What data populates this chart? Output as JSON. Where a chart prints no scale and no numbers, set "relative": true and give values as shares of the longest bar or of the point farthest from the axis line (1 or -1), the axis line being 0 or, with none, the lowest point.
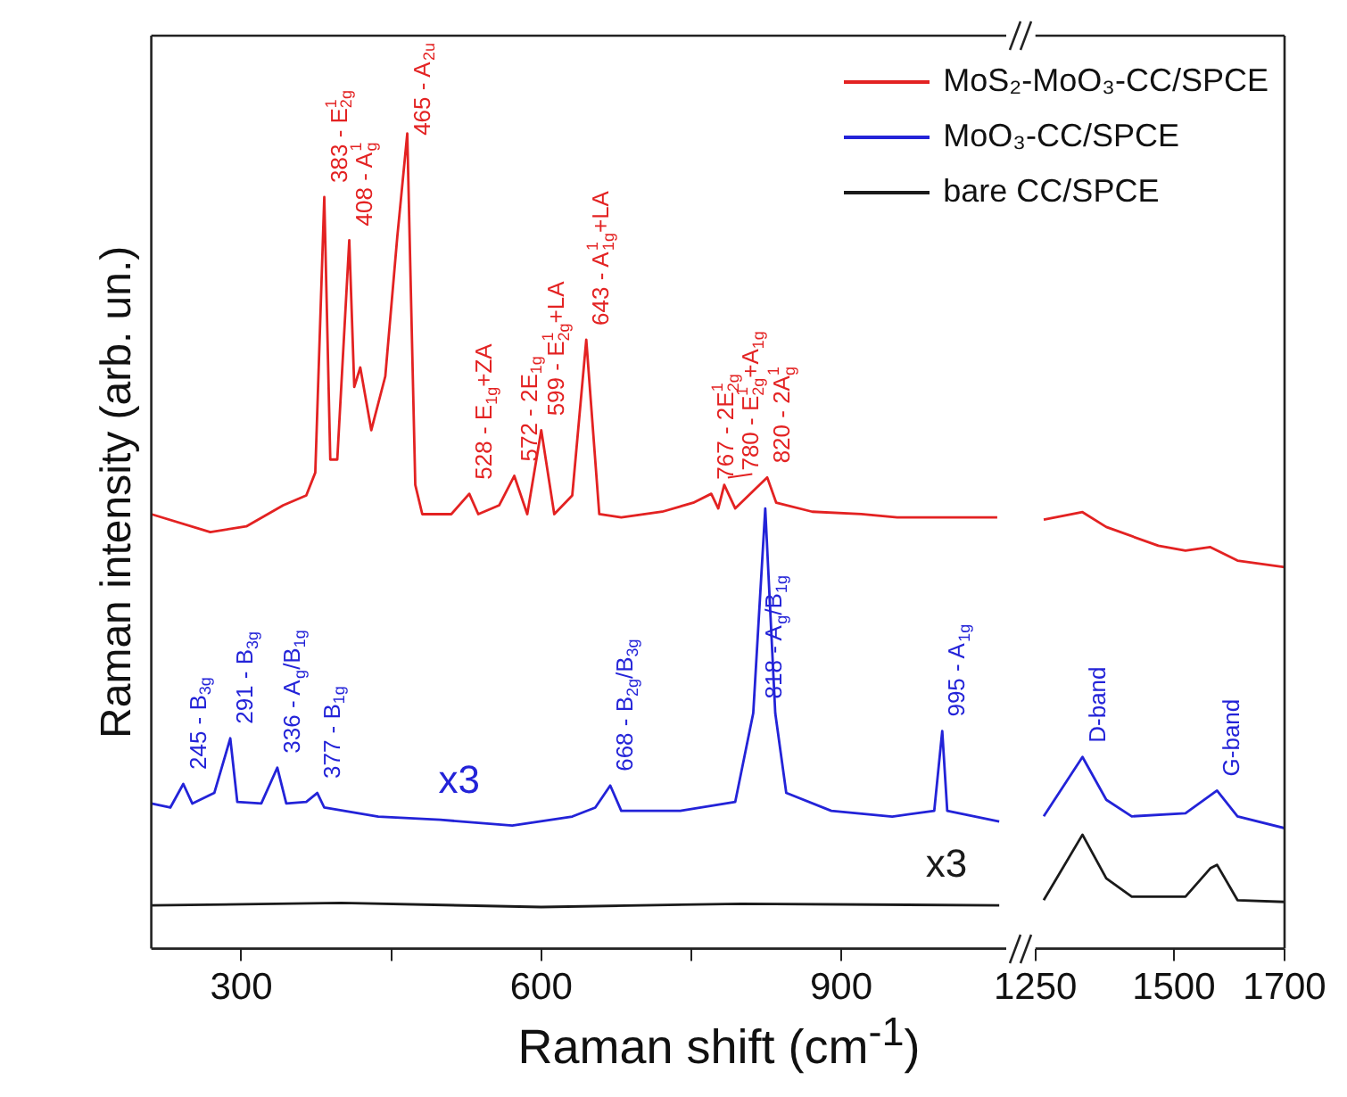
{
  "chart_data": [
    {
      "type": "line",
      "xlabel": "Raman shift (cm$^{-1}$)",
      "ylabel": "Raman intensity (arb. un.)",
      "relative": true,
      "grid": false,
      "legend": "top right",
      "marker": "none",
      "xlim": [
        210,
        1065
      ],
      "xticks": [
        300,
        {
          "value": 450,
          "label": null
        },
        600,
        {
          "value": 750,
          "label": null
        },
        900
      ],
      "series": [
        {
          "name": "MoS₂-MoO₃-CC/SPCE",
          "color": "#e32222",
          "x": [
            210,
            269,
            305,
            342,
            365,
            374,
            383,
            389,
            396,
            408,
            413,
            419,
            430,
            444,
            456,
            466,
            474,
            481,
            510,
            528,
            537,
            558,
            573,
            586,
            600,
            613,
            631,
            645,
            658,
            680,
            721,
            752,
            770,
            777,
            783,
            794,
            826,
            835,
            871,
            920,
            956,
            1056
          ],
          "values": [
            0.533,
            0.511,
            0.518,
            0.544,
            0.556,
            0.584,
            0.922,
            0.6,
            0.6,
            0.869,
            0.689,
            0.713,
            0.636,
            0.702,
            0.873,
            1,
            0.569,
            0.533,
            0.533,
            0.558,
            0.533,
            0.544,
            0.58,
            0.533,
            0.636,
            0.533,
            0.556,
            0.747,
            0.533,
            0.529,
            0.536,
            0.547,
            0.558,
            0.54,
            0.569,
            0.54,
            0.578,
            0.547,
            0.536,
            0.533,
            0.529,
            0.529
          ]
        },
        {
          "name": "MoO₃-CC/SPCE",
          "color": "#2323d8",
          "x": [
            210,
            229,
            242,
            251,
            273,
            289,
            296,
            320,
            336,
            345,
            365,
            376,
            383,
            437,
            499,
            571,
            631,
            654,
            669,
            680,
            739,
            794,
            812,
            824,
            834,
            845,
            890,
            951,
            993,
            1001,
            1006,
            1058
          ],
          "values": [
            0.178,
            0.173,
            0.202,
            0.178,
            0.191,
            0.258,
            0.18,
            0.178,
            0.222,
            0.178,
            0.18,
            0.191,
            0.173,
            0.162,
            0.158,
            0.151,
            0.162,
            0.173,
            0.2,
            0.169,
            0.169,
            0.18,
            0.289,
            0.54,
            0.289,
            0.191,
            0.169,
            0.162,
            0.169,
            0.267,
            0.169,
            0.156
          ]
        },
        {
          "name": "bare CC/SPCE",
          "color": "#1a1a1a",
          "x": [
            210,
            400,
            600,
            800,
            1058
          ],
          "values": [
            0.053,
            0.056,
            0.051,
            0.055,
            0.053
          ]
        }
      ],
      "annotations": [
        {
          "text": "383 - E$^{1}$$_{2g}$",
          "x": 383,
          "y": 0.922
        },
        {
          "text": "408 - A$^{1}$$_{g}$",
          "x": 408,
          "y": 0.869
        },
        {
          "text": "465 - A$_{2u}$",
          "x": 466,
          "y": 1
        },
        {
          "text": "528 - E$_{1g}$+ZA",
          "x": 528,
          "y": 0.558
        },
        {
          "text": "572 - 2E$_{1g}$",
          "x": 573,
          "y": 0.58
        },
        {
          "text": "599 - E$^{1}$$_{2g}$+LA",
          "x": 600,
          "y": 0.636
        },
        {
          "text": "643 - A$^{1}$$_{1g}$+LA",
          "x": 645,
          "y": 0.747
        },
        {
          "text": "767 - 2E$^{1}$$_{2g}$",
          "x": 770,
          "y": 0.558
        },
        {
          "text": "780 - E$^{1}$$_{2g}$+A$_{1g}$",
          "x": 783,
          "y": 0.569
        },
        {
          "text": "820 - 2A$^{1}$$_{g}$",
          "x": 826,
          "y": 0.578
        },
        {
          "text": "245 - B$_{3g}$",
          "x": 242,
          "y": 0.202
        },
        {
          "text": "291 - B$_{3g}$",
          "x": 289,
          "y": 0.258
        },
        {
          "text": "336 - A$_{g}$/B$_{1g}$",
          "x": 336,
          "y": 0.222
        },
        {
          "text": "377 - B$_{1g}$",
          "x": 376,
          "y": 0.191
        },
        {
          "text": "668 - B$_{2g}$/B$_{3g}$",
          "x": 669,
          "y": 0.2
        },
        {
          "text": "818 - A$_{g}$/B$_{1g}$",
          "x": 818,
          "y": 0.289
        },
        {
          "text": "995 - A$_{1g}$",
          "x": 1001,
          "y": 0.267
        },
        "x3",
        "x3"
      ]
    },
    {
      "type": "line",
      "relative": true,
      "grid": false,
      "marker": "none",
      "tick_labels": "x",
      "xlim": [
        1250,
        1700
      ],
      "xticks": [
        1250,
        1500,
        1700
      ],
      "series": [
        {
          "color": "#e32222",
          "x": [
            1265,
            1335,
            1378,
            1472,
            1521,
            1566,
            1615,
            1700
          ],
          "values": [
            0.983,
            1,
            0.966,
            0.923,
            0.912,
            0.92,
            0.889,
            0.874
          ]
        },
        {
          "color": "#2323d8",
          "x": [
            1265,
            1335,
            1378,
            1424,
            1521,
            1578,
            1615,
            1700
          ],
          "values": [
            0.303,
            0.439,
            0.341,
            0.303,
            0.31,
            0.362,
            0.303,
            0.276
          ]
        },
        {
          "color": "#1a1a1a",
          "x": [
            1265,
            1335,
            1378,
            1424,
            1521,
            1566,
            1578,
            1615,
            1700
          ],
          "values": [
            0.111,
            0.261,
            0.161,
            0.119,
            0.119,
            0.184,
            0.192,
            0.111,
            0.107
          ]
        }
      ],
      "annotations": [
        {
          "text": "D-band",
          "x": 1335,
          "y": 0.439
        },
        {
          "text": "G-band",
          "x": 1578,
          "y": 0.362
        }
      ]
    }
  ]
}
